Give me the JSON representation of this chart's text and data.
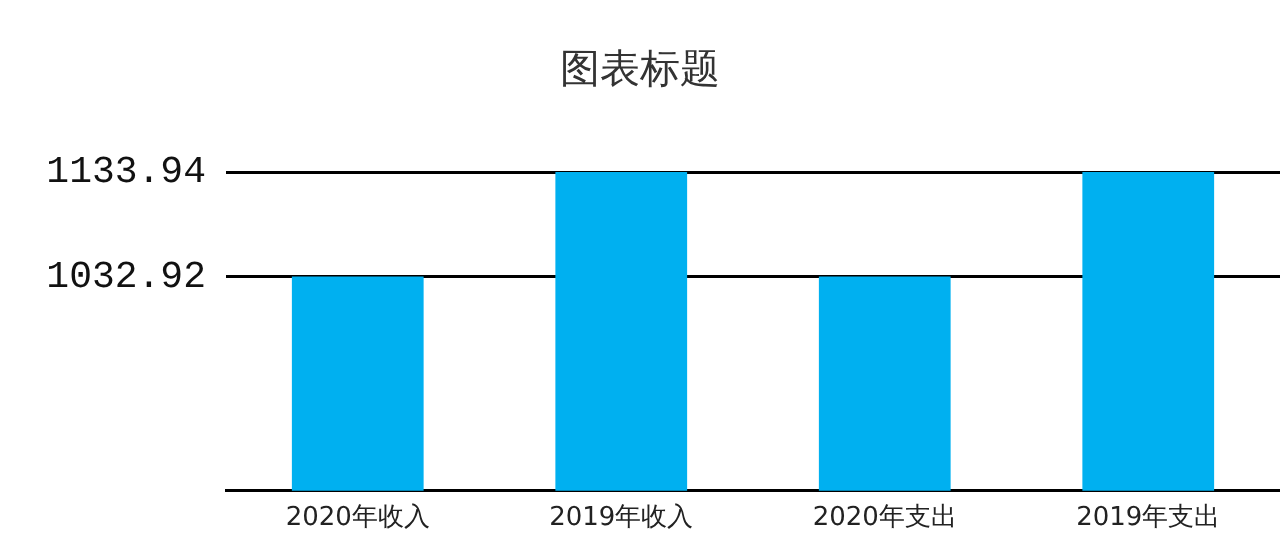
{
  "chart_data": {
    "type": "bar",
    "title": "图表标题",
    "categories": [
      "2020年收入",
      "2019年收入",
      "2020年支出",
      "2019年支出"
    ],
    "values": [
      1032.92,
      1133.94,
      1032.92,
      1133.94
    ],
    "color": "#00b0f0",
    "ylim": [
      826,
      1133.94
    ],
    "yticks": [
      1032.92,
      1133.94
    ],
    "grid": "y",
    "legend": false
  }
}
